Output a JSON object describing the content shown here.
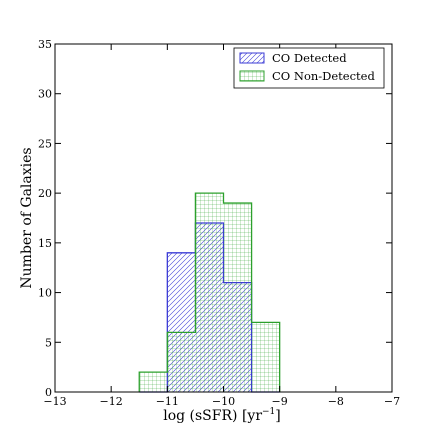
{
  "chart_data": {
    "type": "bar",
    "xlabel_prefix": "log (sSFR) [yr",
    "xlabel_exp": "−1",
    "xlabel_suffix": "]",
    "ylabel": "Number of Galaxies",
    "xlim": [
      -13,
      -7
    ],
    "ylim": [
      0,
      35
    ],
    "xticks": [
      -13,
      -12,
      -11,
      -10,
      -9,
      -8,
      -7
    ],
    "xtick_labels": [
      "−13",
      "−12",
      "−11",
      "−10",
      "−9",
      "−8",
      "−7"
    ],
    "yticks": [
      0,
      5,
      10,
      15,
      20,
      25,
      30,
      35
    ],
    "ytick_labels": [
      "0",
      "5",
      "10",
      "15",
      "20",
      "25",
      "30",
      "35"
    ],
    "bin_edges": [
      -11.5,
      -11.0,
      -10.5,
      -10.0,
      -9.5,
      -9.0
    ],
    "series": [
      {
        "name": "CO Detected",
        "color": "#3b3bd6",
        "hatch": "diagonal",
        "counts": [
          0,
          14,
          17,
          11,
          0
        ]
      },
      {
        "name": "CO Non-Detected",
        "color": "#2ca02c",
        "hatch": "grid",
        "counts": [
          2,
          6,
          20,
          19,
          7
        ]
      }
    ],
    "legend_position": "top-right",
    "grid": false
  }
}
